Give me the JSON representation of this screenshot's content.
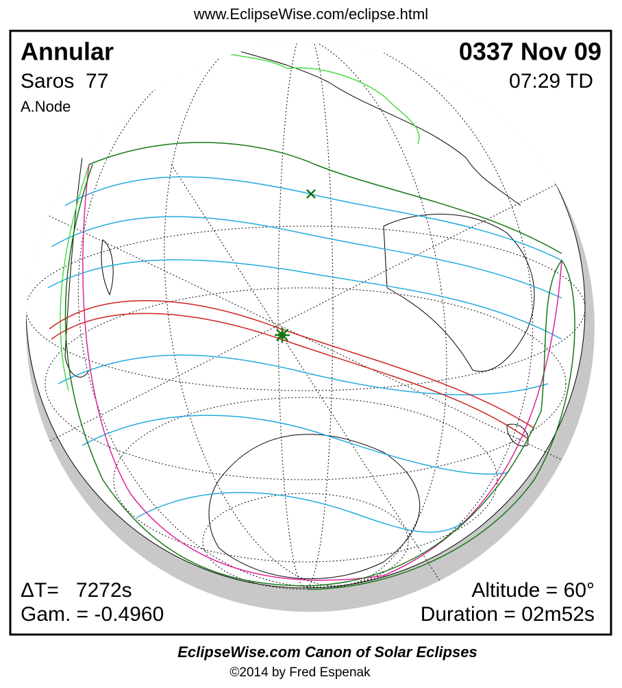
{
  "header": {
    "url": "www.EclipseWise.com/eclipse.html"
  },
  "panel": {
    "eclipse_type": "Annular",
    "saros": "Saros  77",
    "node": "A.Node",
    "date": "0337 Nov 09",
    "time": "07:29 TD",
    "delta_t": "ΔT=   7272s",
    "gamma": "Gam. = -0.4960",
    "altitude": "Altitude = 60°",
    "duration": "Duration = 02m52s"
  },
  "footer": {
    "title": "EclipseWise.com Canon of Solar Eclipses",
    "copyright": "©2014 by Fred Espenak"
  }
}
